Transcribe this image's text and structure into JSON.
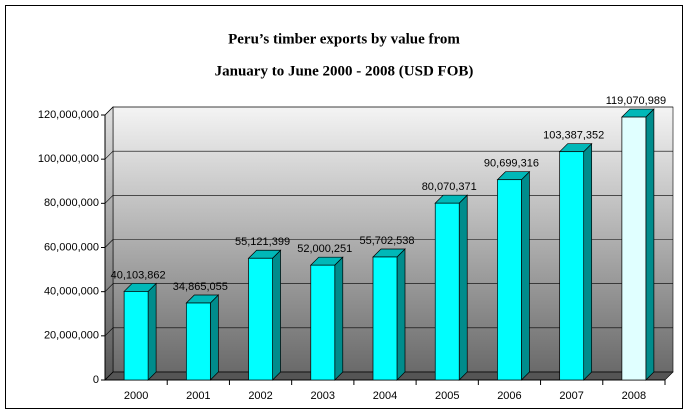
{
  "chart_data": {
    "type": "bar",
    "title": "Peru’s timber exports by value from",
    "subtitle": "January to June 2000 - 2008 (USD FOB)",
    "categories": [
      "2000",
      "2001",
      "2002",
      "2003",
      "2004",
      "2005",
      "2006",
      "2007",
      "2008"
    ],
    "values": [
      40103862,
      34865055,
      55121399,
      52000251,
      55702538,
      80070371,
      90699316,
      103387352,
      119070989
    ],
    "value_labels": [
      "40,103,862",
      "34,865,055",
      "55,121,399",
      "52,000,251",
      "55,702,538",
      "80,070,371",
      "90,699,316",
      "103,387,352",
      "119,070,989"
    ],
    "colors": [
      "#00ffff",
      "#00ffff",
      "#00ffff",
      "#00ffff",
      "#00ffff",
      "#00ffff",
      "#00ffff",
      "#00ffff",
      "#e0ffff"
    ],
    "ylim": [
      0,
      120000000
    ],
    "yticks": [
      0,
      {
        "value": 20000000,
        "label": "20,000,000"
      },
      {
        "value": 40000000,
        "label": "40,000,000"
      },
      {
        "value": 60000000,
        "label": "60,000,000"
      },
      {
        "value": 80000000,
        "label": "80,000,000"
      },
      {
        "value": 100000000,
        "label": "100,000,000"
      },
      {
        "value": 120000000,
        "label": "120,000,000"
      }
    ],
    "grid": true
  }
}
